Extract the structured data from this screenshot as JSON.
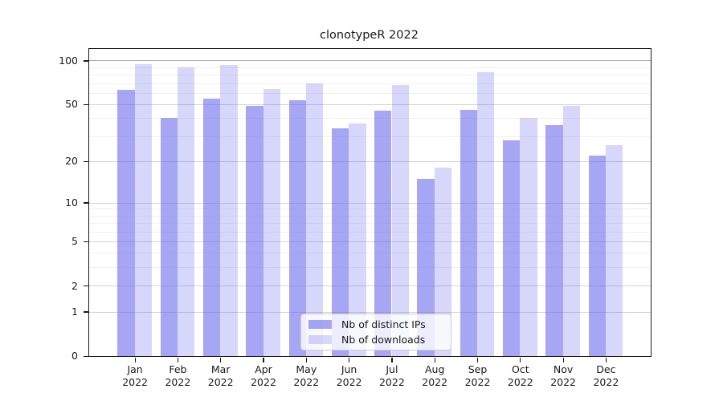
{
  "chart_data": {
    "type": "bar",
    "title": "clonotypeR 2022",
    "categories": [
      "Jan",
      "Feb",
      "Mar",
      "Apr",
      "May",
      "Jun",
      "Jul",
      "Aug",
      "Sep",
      "Oct",
      "Nov",
      "Dec"
    ],
    "year_label": "2022",
    "series": [
      {
        "name": "Nb of distinct IPs",
        "alpha": 0.58,
        "values": [
          63,
          40,
          55,
          49,
          53,
          34,
          45,
          15,
          46,
          28,
          36,
          22
        ]
      },
      {
        "name": "Nb of downloads",
        "alpha": 0.26,
        "values": [
          95,
          90,
          93,
          64,
          70,
          37,
          68,
          18,
          83,
          40,
          49,
          26
        ]
      }
    ],
    "base_color": "#6666ee",
    "yscale": "log1p",
    "ylim": [
      0,
      120
    ],
    "yticks_major": [
      0,
      1,
      2,
      5,
      10,
      20,
      50,
      100
    ],
    "yticks_minor": [
      3,
      4,
      6,
      7,
      8,
      9,
      30,
      40,
      60,
      70,
      80,
      90
    ],
    "grid": true,
    "legend_position": "inside-bottom-center",
    "colors": {
      "grid_major": "#d4d4d4",
      "grid_minor": "#f0f0f0",
      "grid_top_major": "#a9a9a9",
      "spine": "#1a1a1a",
      "text": "#1a1a1a"
    }
  }
}
